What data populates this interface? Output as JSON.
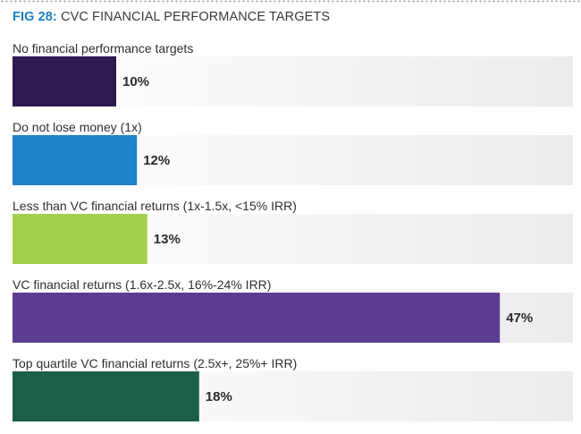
{
  "figure": {
    "number": "FIG 28:",
    "title": "CVC FINANCIAL PERFORMANCE TARGETS"
  },
  "chart_data": {
    "type": "bar",
    "orientation": "horizontal",
    "title": "CVC FINANCIAL PERFORMANCE TARGETS",
    "categories": [
      "No financial performance targets",
      "Do not lose money (1x)",
      "Less than VC financial returns (1x-1.5x, <15% IRR)",
      "VC financial returns (1.6x-2.5x, 16%-24% IRR)",
      "Top quartile VC financial returns (2.5x+, 25%+ IRR)"
    ],
    "values": [
      10,
      12,
      13,
      47,
      18
    ],
    "value_labels": [
      "10%",
      "12%",
      "13%",
      "47%",
      "18%"
    ],
    "colors": [
      "#2b1b4f",
      "#1e83c8",
      "#a4cf4a",
      "#5c3b93",
      "#1b5e4a"
    ],
    "track_color": "#f0f0f0",
    "xlim": [
      0,
      50
    ],
    "grid": false,
    "legend": "none"
  }
}
